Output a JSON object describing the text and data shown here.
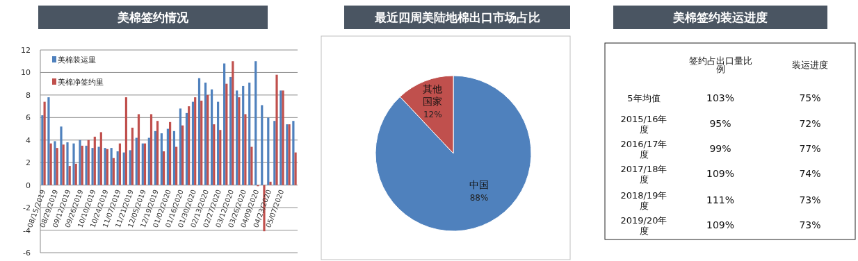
{
  "chart_data": [
    {
      "type": "bar",
      "title": "美棉签约情况",
      "categories": [
        "08/15/2019",
        null,
        "08/29/2019",
        null,
        "09/12/2019",
        null,
        "09/26/2019",
        null,
        "10/10/2019",
        null,
        "10/24/2019",
        null,
        "11/07/2019",
        null,
        "11/21/2019",
        null,
        "12/05/2019",
        null,
        "12/19/2019",
        null,
        "01/02/2020",
        null,
        "01/16/2020",
        null,
        "01/30/2020",
        null,
        "02/13/2020",
        null,
        "02/27/2020",
        null,
        "03/12/2020",
        null,
        "03/26/2020",
        null,
        "04/09/2020",
        null,
        "04/23/2020",
        null,
        "05/07/2020",
        null,
        null
      ],
      "series": [
        {
          "name": "美棉装运里",
          "color": "#4f81bd",
          "values": [
            6.2,
            7.8,
            3.9,
            5.2,
            3.8,
            3.7,
            4.0,
            3.5,
            3.3,
            3.4,
            3.3,
            3.3,
            3.0,
            2.9,
            3.1,
            4.2,
            3.7,
            4.2,
            4.8,
            4.6,
            5.0,
            4.8,
            6.8,
            6.4,
            7.4,
            9.5,
            9.1,
            8.5,
            7.4,
            10.8,
            9.6,
            8.4,
            8.8,
            9.1,
            11.0,
            7.1,
            6.0,
            5.7,
            8.4,
            5.4,
            5.7
          ]
        },
        {
          "name": "美棉净签约里",
          "color": "#c0504d",
          "values": [
            7.4,
            3.7,
            3.3,
            3.6,
            1.7,
            1.9,
            3.5,
            4.0,
            4.3,
            4.7,
            3.2,
            2.4,
            3.7,
            7.8,
            5.1,
            6.3,
            3.7,
            6.3,
            5.7,
            3.0,
            5.6,
            3.4,
            5.3,
            7.0,
            7.8,
            7.5,
            8.0,
            5.4,
            4.9,
            9.0,
            11.0,
            7.8,
            6.3,
            3.4,
            -0.1,
            -4.1,
            0.3,
            9.8,
            8.4,
            5.4,
            2.9
          ]
        }
      ],
      "ylim": [
        -6,
        12
      ],
      "yticks": [
        -6,
        -4,
        -2,
        0,
        2,
        4,
        6,
        8,
        10,
        12
      ],
      "grid": "y",
      "legend": "top left"
    },
    {
      "type": "pie",
      "title": "最近四周美陆地棉出口市场占比",
      "categories": [
        "中国",
        "其他国家"
      ],
      "values": [
        88,
        12
      ],
      "colors": [
        "#4f81bd",
        "#c0504d"
      ],
      "value_labels": [
        "88%",
        "12%"
      ]
    },
    {
      "type": "other",
      "title": "美棉签约装运进度",
      "categories": [
        "签约占出口量比例",
        "装运进度"
      ],
      "y_categories": [
        "5年均值",
        "2015/16年度",
        "2016/17年度",
        "2017/18年度",
        "2018/19年度",
        "2019/20年度"
      ],
      "cell_labels": [
        [
          "103%",
          "75%"
        ],
        [
          "95%",
          "72%"
        ],
        [
          "99%",
          "77%"
        ],
        [
          "109%",
          "74%"
        ],
        [
          "111%",
          "73%"
        ],
        [
          "109%",
          "73%"
        ]
      ]
    }
  ]
}
